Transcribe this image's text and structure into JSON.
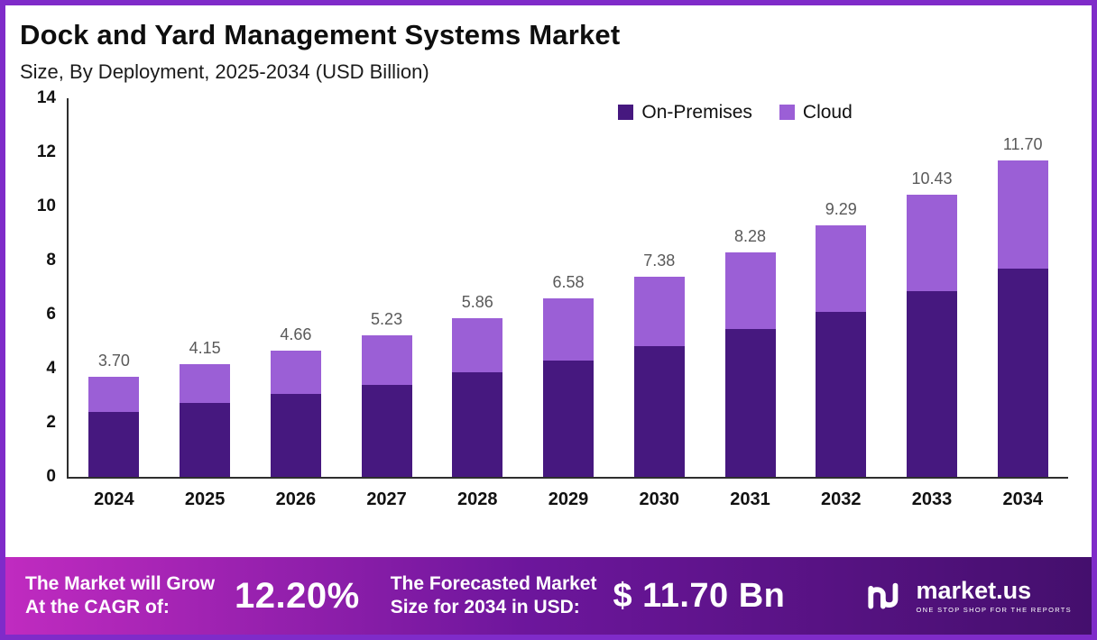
{
  "title": "Dock and Yard Management Systems Market",
  "subtitle": "Size, By Deployment, 2025-2034 (USD Billion)",
  "colors": {
    "on_premises": "#46187f",
    "cloud": "#9b5fd6",
    "border": "#7f2bc9",
    "banner_left": "#c02bc0",
    "banner_mid": "#6d169c",
    "banner_right": "#440f6d",
    "value_label": "#595959"
  },
  "legend": [
    {
      "label": "On-Premises",
      "color": "#46187f"
    },
    {
      "label": "Cloud",
      "color": "#9b5fd6"
    }
  ],
  "chart_data": {
    "type": "bar",
    "stacked": true,
    "title": "Dock and Yard Management Systems Market",
    "subtitle": "Size, By Deployment, 2025-2034 (USD Billion)",
    "xlabel": "",
    "ylabel": "USD Billion",
    "ylim": [
      0,
      14
    ],
    "yticks": [
      0,
      2,
      4,
      6,
      8,
      10,
      12,
      14
    ],
    "grid": false,
    "legend_position": "top-right-inside",
    "categories": [
      "2024",
      "2025",
      "2026",
      "2027",
      "2028",
      "2029",
      "2030",
      "2031",
      "2032",
      "2033",
      "2034"
    ],
    "series": [
      {
        "name": "On-Premises",
        "color": "#46187f",
        "values": [
          2.4,
          2.72,
          3.05,
          3.4,
          3.85,
          4.28,
          4.82,
          5.45,
          6.09,
          6.86,
          7.69
        ]
      },
      {
        "name": "Cloud",
        "color": "#9b5fd6",
        "values": [
          1.3,
          1.43,
          1.61,
          1.83,
          2.01,
          2.3,
          2.56,
          2.83,
          3.2,
          3.57,
          4.01
        ]
      }
    ],
    "totals": [
      3.7,
      4.15,
      4.66,
      5.23,
      5.86,
      6.58,
      7.38,
      8.28,
      9.29,
      10.43,
      11.7
    ],
    "total_labels": [
      "3.70",
      "4.15",
      "4.66",
      "5.23",
      "5.86",
      "6.58",
      "7.38",
      "8.28",
      "9.29",
      "10.43",
      "11.70"
    ]
  },
  "footer": {
    "cagr_label_line1": "The Market will Grow",
    "cagr_label_line2": "At the CAGR of:",
    "cagr_value": "12.20%",
    "forecast_label_line1": "The Forecasted Market",
    "forecast_label_line2": "Size for 2034 in USD:",
    "forecast_value": "$ 11.70 Bn",
    "brand": "market.us",
    "brand_tagline": "ONE STOP SHOP FOR THE REPORTS"
  }
}
